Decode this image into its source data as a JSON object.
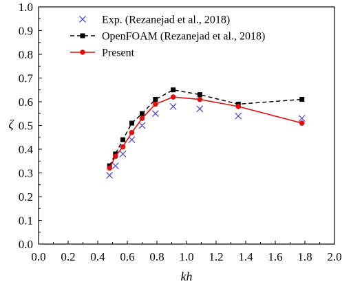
{
  "chart_data": {
    "type": "line",
    "title": "",
    "xlabel": "kh",
    "ylabel": "ζ",
    "xlim": [
      0.0,
      2.0
    ],
    "ylim": [
      0.0,
      1.0
    ],
    "x_ticks": [
      "0.0",
      "0.2",
      "0.4",
      "0.6",
      "0.8",
      "1.0",
      "1.2",
      "1.4",
      "1.6",
      "1.8",
      "2.0"
    ],
    "y_ticks": [
      "0.0",
      "0.1",
      "0.2",
      "0.3",
      "0.4",
      "0.5",
      "0.6",
      "0.7",
      "0.8",
      "0.9",
      "1.0"
    ],
    "grid": false,
    "legend_position": "top-right",
    "series": [
      {
        "name": "Exp. (Rezanejad et al., 2018)",
        "style": "scatter-x",
        "color": "#4f4fd8",
        "x": [
          0.48,
          0.52,
          0.57,
          0.63,
          0.7,
          0.79,
          0.91,
          1.09,
          1.35,
          1.78
        ],
        "y": [
          0.29,
          0.33,
          0.38,
          0.44,
          0.5,
          0.55,
          0.58,
          0.57,
          0.54,
          0.53
        ]
      },
      {
        "name": "OpenFOAM (Rezanejad et al., 2018)",
        "style": "dashed-square",
        "color": "#000000",
        "x": [
          0.48,
          0.52,
          0.57,
          0.63,
          0.7,
          0.79,
          0.91,
          1.09,
          1.35,
          1.78
        ],
        "y": [
          0.33,
          0.38,
          0.44,
          0.51,
          0.55,
          0.61,
          0.65,
          0.63,
          0.59,
          0.61
        ]
      },
      {
        "name": "Present",
        "style": "solid-circle",
        "color": "#e01010",
        "x": [
          0.48,
          0.52,
          0.57,
          0.63,
          0.7,
          0.79,
          0.91,
          1.09,
          1.35,
          1.78
        ],
        "y": [
          0.32,
          0.37,
          0.41,
          0.47,
          0.53,
          0.59,
          0.62,
          0.61,
          0.58,
          0.51
        ]
      }
    ]
  }
}
